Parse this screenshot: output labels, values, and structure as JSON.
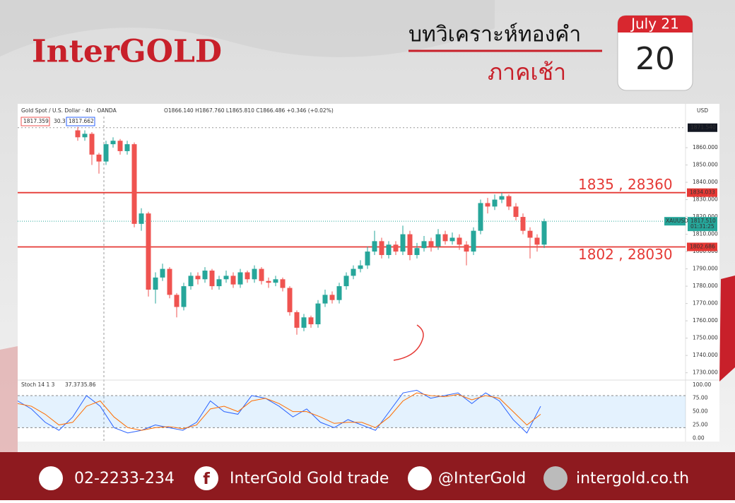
{
  "header": {
    "brand": "InterGOLD",
    "title": "บทวิเคราะห์ทองคำ",
    "subtitle": "ภาคเช้า",
    "month": "July 21",
    "day": "20"
  },
  "chart_data": {
    "type": "candlestick",
    "title": "Gold Spot / U.S. Dollar · 4h · OANDA",
    "ohlc_label": "O1866.140 H1867.760 L1865.810 C1866.486 +0.346 (+0.02%)",
    "sell_price": "1817.359",
    "spread": "30.3",
    "buy_price": "1817.662",
    "currency": "USD",
    "symbol": "XAUUSD",
    "countdown": "01:31:25",
    "up_color": "#26a69a",
    "down_color": "#ef5350",
    "level_color": "#e53935",
    "ylim": [
      1727,
      1880
    ],
    "yticks": [
      {
        "value": 1730,
        "label": "1730.000"
      },
      {
        "value": 1740,
        "label": "1740.000"
      },
      {
        "value": 1750,
        "label": "1750.000"
      },
      {
        "value": 1760,
        "label": "1760.000"
      },
      {
        "value": 1770,
        "label": "1770.000"
      },
      {
        "value": 1780,
        "label": "1780.000"
      },
      {
        "value": 1790,
        "label": "1790.000"
      },
      {
        "value": 1800,
        "label": "1800.000"
      },
      {
        "value": 1810,
        "label": "1810.000"
      },
      {
        "value": 1820,
        "label": "1820.000"
      },
      {
        "value": 1830,
        "label": "1830.000"
      },
      {
        "value": 1840,
        "label": "1840.000"
      },
      {
        "value": 1850,
        "label": "1850.000"
      },
      {
        "value": 1860,
        "label": "1860.000"
      }
    ],
    "levels": [
      {
        "value": 1834.033,
        "label": "1834.033"
      },
      {
        "value": 1802.686,
        "label": "1802.686"
      }
    ],
    "annotations": [
      "1835 , 28360",
      "1802 , 28030"
    ],
    "current_price": {
      "value": 1817.51,
      "label": "1817.510"
    },
    "top_marker": {
      "value": 1871.54,
      "label": "1871.540"
    },
    "open": [
      1870,
      1866,
      1868,
      1856,
      1852,
      1862,
      1864,
      1858,
      1862,
      1816,
      1822,
      1778,
      1785,
      1790,
      1775,
      1768,
      1780,
      1786,
      1784,
      1789,
      1780,
      1784,
      1786,
      1781,
      1788,
      1784,
      1790,
      1783,
      1782,
      1784,
      1779,
      1765,
      1756,
      1762,
      1758,
      1770,
      1775,
      1772,
      1780,
      1786,
      1790,
      1792,
      1800,
      1806,
      1798,
      1804,
      1800,
      1810,
      1798,
      1802,
      1806,
      1803,
      1810,
      1806,
      1808,
      1804,
      1800,
      1812,
      1828,
      1826,
      1830,
      1832,
      1826,
      1820,
      1812,
      1808,
      1804
    ],
    "high": [
      1872,
      1870,
      1869,
      1857,
      1864,
      1866,
      1865,
      1864,
      1863,
      1825,
      1823,
      1788,
      1793,
      1791,
      1776,
      1782,
      1788,
      1788,
      1791,
      1790,
      1786,
      1789,
      1788,
      1790,
      1789,
      1792,
      1791,
      1785,
      1786,
      1785,
      1780,
      1766,
      1764,
      1763,
      1772,
      1778,
      1777,
      1782,
      1788,
      1792,
      1795,
      1803,
      1812,
      1808,
      1806,
      1806,
      1815,
      1812,
      1805,
      1809,
      1808,
      1813,
      1812,
      1811,
      1810,
      1806,
      1814,
      1830,
      1831,
      1833,
      1834,
      1833,
      1828,
      1822,
      1814,
      1810,
      1819
    ],
    "low": [
      1864,
      1864,
      1850,
      1845,
      1850,
      1860,
      1856,
      1856,
      1814,
      1812,
      1774,
      1770,
      1783,
      1773,
      1762,
      1766,
      1778,
      1781,
      1782,
      1778,
      1778,
      1782,
      1779,
      1779,
      1782,
      1782,
      1781,
      1779,
      1780,
      1777,
      1763,
      1752,
      1754,
      1756,
      1756,
      1768,
      1770,
      1770,
      1778,
      1784,
      1788,
      1790,
      1798,
      1796,
      1796,
      1798,
      1798,
      1795,
      1796,
      1800,
      1800,
      1801,
      1804,
      1804,
      1801,
      1792,
      1798,
      1810,
      1822,
      1824,
      1828,
      1824,
      1818,
      1810,
      1796,
      1800,
      1802
    ],
    "close": [
      1866,
      1868,
      1856,
      1852,
      1862,
      1864,
      1858,
      1862,
      1816,
      1822,
      1778,
      1785,
      1790,
      1775,
      1768,
      1780,
      1786,
      1784,
      1789,
      1780,
      1784,
      1786,
      1781,
      1788,
      1784,
      1790,
      1783,
      1782,
      1784,
      1779,
      1765,
      1756,
      1762,
      1758,
      1770,
      1775,
      1772,
      1780,
      1786,
      1790,
      1792,
      1800,
      1806,
      1798,
      1804,
      1800,
      1810,
      1798,
      1802,
      1806,
      1803,
      1810,
      1806,
      1808,
      1804,
      1800,
      1812,
      1828,
      1826,
      1830,
      1832,
      1826,
      1820,
      1812,
      1808,
      1804,
      1817.51
    ],
    "stoch": {
      "title": "Stoch 14 1 3",
      "k_label": "37.37",
      "d_label": "35.86",
      "ylim": [
        -6,
        109
      ],
      "band": [
        20,
        80
      ],
      "yticks": [
        {
          "value": 0,
          "label": "0.00"
        },
        {
          "value": 25,
          "label": "25.00"
        },
        {
          "value": 50,
          "label": "50.00"
        },
        {
          "value": 75,
          "label": "75.00"
        },
        {
          "value": 100,
          "label": "100.00"
        }
      ],
      "series": [
        {
          "color": "#2962ff",
          "values": [
            70,
            55,
            30,
            15,
            40,
            80,
            60,
            20,
            10,
            15,
            25,
            20,
            15,
            30,
            70,
            50,
            45,
            80,
            75,
            60,
            40,
            55,
            30,
            20,
            35,
            25,
            15,
            50,
            85,
            90,
            75,
            80,
            85,
            65,
            85,
            70,
            35,
            10,
            60
          ]
        },
        {
          "color": "#ff6d00",
          "values": [
            65,
            60,
            45,
            25,
            30,
            60,
            70,
            40,
            20,
            15,
            20,
            22,
            18,
            25,
            55,
            60,
            50,
            70,
            75,
            65,
            50,
            50,
            40,
            28,
            30,
            30,
            20,
            40,
            70,
            85,
            80,
            78,
            82,
            72,
            80,
            75,
            50,
            25,
            45
          ]
        }
      ]
    }
  },
  "footer": {
    "phone": "02-2233-234",
    "facebook": "InterGold Gold trade",
    "line": "@InterGold",
    "web": "intergold.co.th"
  }
}
